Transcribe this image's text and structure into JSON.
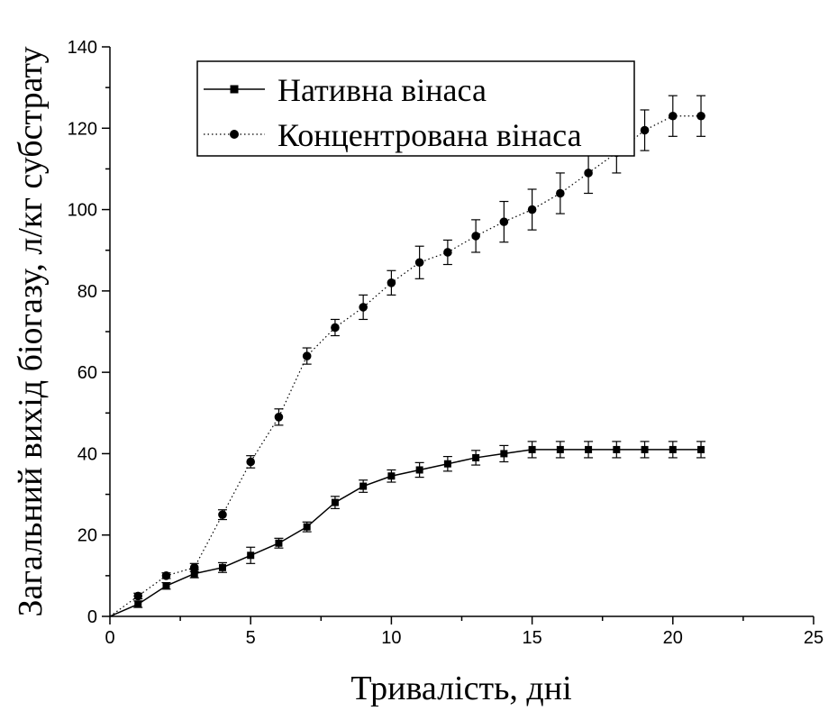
{
  "chart_data": {
    "type": "line",
    "xlabel": "Тривалість, дні",
    "ylabel": "Загальний вихід біогазу, л/кг субстрату",
    "xlim": [
      0,
      25
    ],
    "ylim": [
      0,
      140
    ],
    "xticks": [
      0,
      5,
      10,
      15,
      20,
      25
    ],
    "yticks": [
      0,
      20,
      40,
      60,
      80,
      100,
      120,
      140
    ],
    "grid": false,
    "legend_position": "top-right",
    "series": [
      {
        "name": "Нативна вінаса",
        "marker": "square",
        "line_style": "solid",
        "color": "#000000",
        "x": [
          0,
          1,
          2,
          3,
          4,
          5,
          6,
          7,
          8,
          9,
          10,
          11,
          12,
          13,
          14,
          15,
          16,
          17,
          18,
          19,
          20,
          21
        ],
        "y": [
          0,
          3,
          7.5,
          10.5,
          12,
          15,
          18,
          22,
          28,
          32,
          34.5,
          36,
          37.5,
          39,
          40,
          41,
          41,
          41,
          41,
          41,
          41,
          41
        ],
        "error": [
          0,
          0.8,
          0.8,
          1,
          1.2,
          2,
          1.2,
          1.2,
          1.5,
          1.5,
          1.5,
          1.8,
          1.8,
          1.8,
          2,
          2,
          2,
          2,
          2,
          2,
          2,
          2
        ]
      },
      {
        "name": "Концентрована вінаса",
        "marker": "circle",
        "line_style": "dotted",
        "color": "#000000",
        "x": [
          0,
          1,
          2,
          3,
          4,
          5,
          6,
          7,
          8,
          9,
          10,
          11,
          12,
          13,
          14,
          15,
          16,
          17,
          18,
          19,
          20,
          21
        ],
        "y": [
          0,
          5,
          10,
          12,
          25,
          38,
          49,
          64,
          71,
          76,
          82,
          87,
          89.5,
          93.5,
          97,
          100,
          104,
          109,
          114,
          119.5,
          123,
          123
        ],
        "error": [
          0,
          0.7,
          0.7,
          1,
          1.2,
          1.5,
          2,
          2,
          2,
          3,
          3,
          4,
          3,
          4,
          5,
          5,
          5,
          5,
          5,
          5,
          5,
          5
        ]
      }
    ]
  }
}
